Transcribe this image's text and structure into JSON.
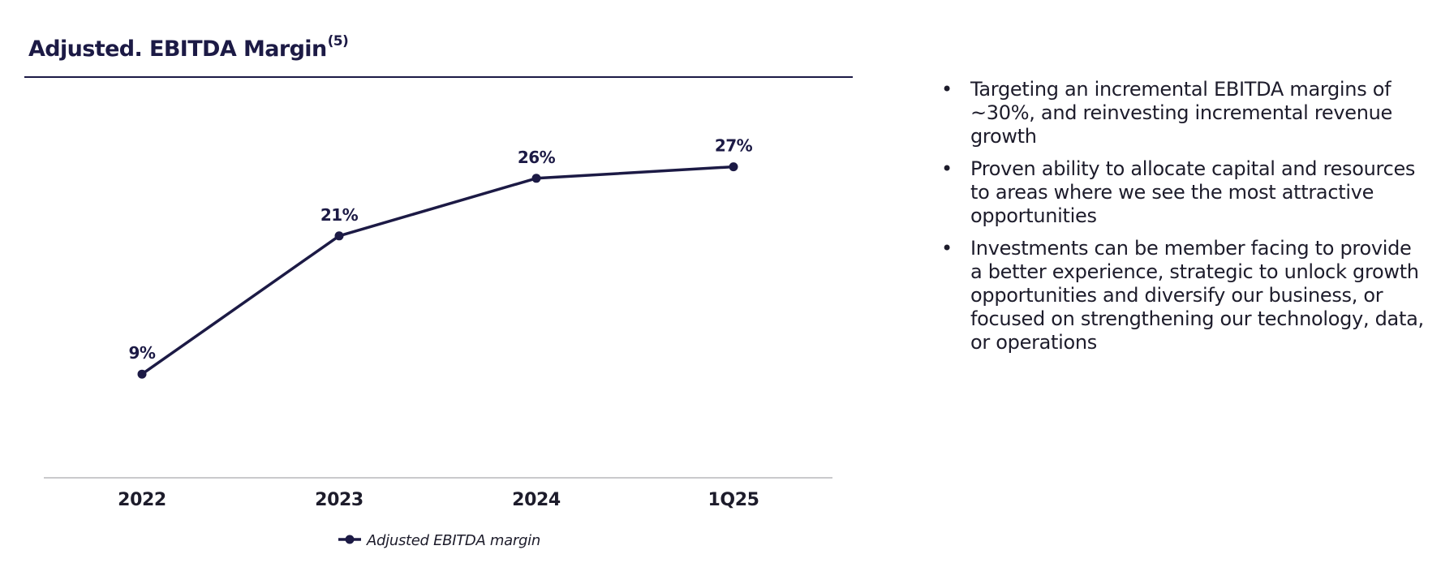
{
  "chart_data": {
    "type": "line",
    "title": "Adjusted. EBITDA Margin",
    "title_superscript": "(5)",
    "categories": [
      "2022",
      "2023",
      "2024",
      "1Q25"
    ],
    "series": [
      {
        "name": "Adjusted EBITDA margin",
        "values": [
          9,
          21,
          26,
          27
        ],
        "labels": [
          "9%",
          "21%",
          "26%",
          "27%"
        ],
        "color": "#1c1a45"
      }
    ],
    "xlabel": "",
    "ylabel": "",
    "ylim": [
      0,
      30
    ],
    "grid": false,
    "legend": "bottom-center"
  },
  "bullets": [
    {
      "marker": "•",
      "text": "Targeting an incremental EBITDA margins of ~30%, and reinvesting incremental revenue growth"
    },
    {
      "marker": "•",
      "text": "Proven ability to allocate capital and resources to areas where we see the most attractive opportunities"
    },
    {
      "marker": "•",
      "text": "Investments can be member facing to provide a better experience, strategic to unlock growth opportunities and diversify our business, or focused on strengthening our technology, data, or operations"
    }
  ]
}
